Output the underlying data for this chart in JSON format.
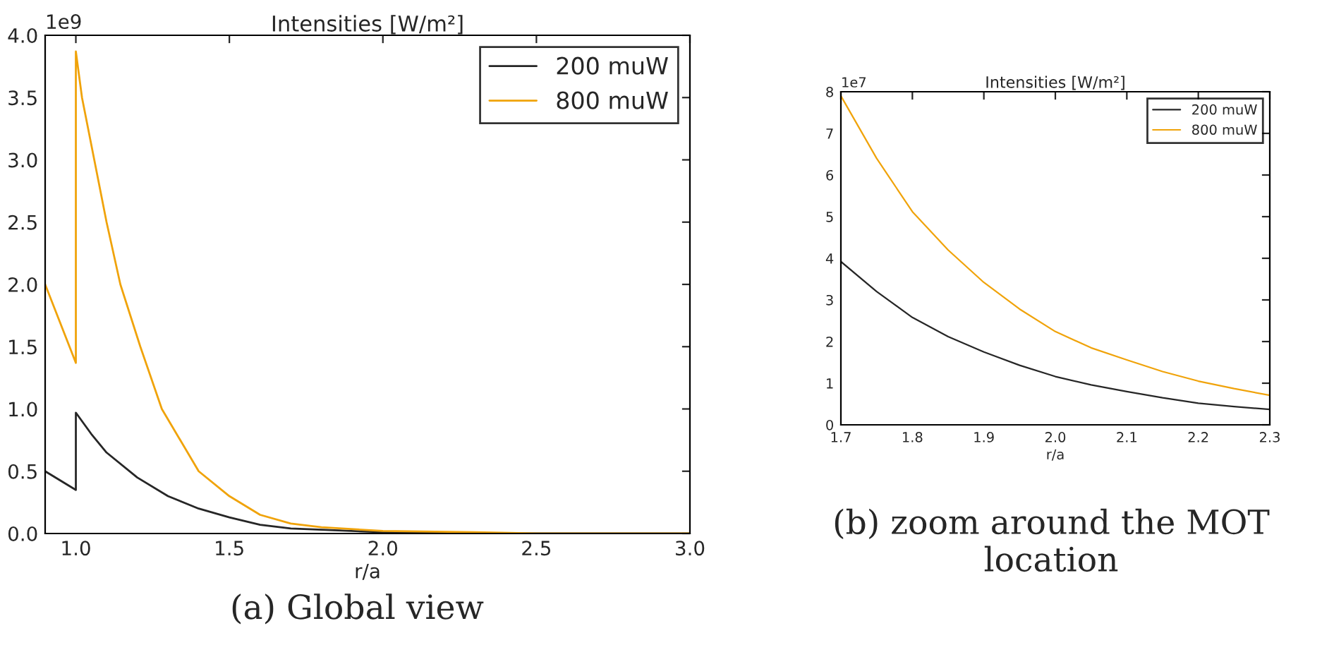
{
  "chart_data": [
    {
      "type": "line",
      "title": "Intensities [W/m²]",
      "xlabel": "r/a",
      "legend": "top right",
      "grid": false,
      "xlim": [
        0.9,
        3.0
      ],
      "xticks": [
        {
          "value": 1,
          "label": "1.0"
        },
        1.5,
        {
          "value": 2,
          "label": "2.0"
        },
        2.5,
        {
          "value": 3,
          "label": "3.0"
        }
      ],
      "ylim": [
        0,
        4.0
      ],
      "yticks": [
        {
          "value": 0,
          "label": "0.0"
        },
        0.5,
        {
          "value": 1,
          "label": "1.0"
        },
        1.5,
        {
          "value": 2,
          "label": "2.0"
        },
        2.5,
        {
          "value": 3,
          "label": "3.0"
        },
        3.5,
        {
          "value": 4,
          "label": "4.0"
        }
      ],
      "annotations": [
        "1e9",
        "(a) Global view"
      ],
      "series": [
        {
          "name": "200 muW",
          "color": "#262626",
          "x": [
            0.9,
            1.0,
            1.0,
            1.05,
            1.1,
            1.2,
            1.3,
            1.4,
            1.5,
            1.6,
            1.7,
            1.8,
            2.0,
            2.3,
            2.5,
            3.0
          ],
          "values": [
            0.5,
            0.35,
            0.97,
            0.8,
            0.65,
            0.45,
            0.3,
            0.2,
            0.13,
            0.07,
            0.04,
            0.03,
            0.01,
            0.0,
            0.0,
            0.0
          ]
        },
        {
          "name": "800 muW",
          "color": "#f0a30a",
          "x": [
            0.9,
            1.0,
            1.0,
            1.02,
            1.06,
            1.1,
            1.145,
            1.21,
            1.28,
            1.4,
            1.5,
            1.6,
            1.7,
            1.8,
            2.0,
            2.3,
            2.5,
            3.0
          ],
          "values": [
            2.0,
            1.37,
            3.87,
            3.5,
            3.0,
            2.5,
            2.0,
            1.5,
            1.0,
            0.5,
            0.3,
            0.15,
            0.08,
            0.05,
            0.02,
            0.01,
            0.0,
            0.0
          ]
        }
      ]
    },
    {
      "type": "line",
      "title": "Intensities [W/m²]",
      "xlabel": "r/a",
      "legend": "top right",
      "grid": false,
      "xlim": [
        1.7,
        2.3
      ],
      "xticks": [
        1.7,
        1.8,
        1.9,
        {
          "value": 2,
          "label": "2.0"
        },
        2.1,
        2.2,
        2.3
      ],
      "ylim": [
        0,
        8
      ],
      "yticks": [
        0,
        1,
        2,
        3,
        4,
        5,
        6,
        7,
        8
      ],
      "annotations": [
        "1e7",
        "(b) zoom around the MOT location"
      ],
      "series": [
        {
          "name": "200 muW",
          "color": "#262626",
          "x": [
            1.7,
            1.75,
            1.8,
            1.85,
            1.9,
            1.95,
            2.0,
            2.05,
            2.1,
            2.15,
            2.2,
            2.25,
            2.3
          ],
          "values": [
            3.92,
            3.2,
            2.58,
            2.12,
            1.75,
            1.43,
            1.16,
            0.96,
            0.8,
            0.65,
            0.52,
            0.44,
            0.37
          ]
        },
        {
          "name": "800 muW",
          "color": "#f0a30a",
          "x": [
            1.7,
            1.75,
            1.8,
            1.85,
            1.9,
            1.95,
            2.0,
            2.05,
            2.1,
            2.15,
            2.2,
            2.25,
            2.3
          ],
          "values": [
            7.9,
            6.4,
            5.12,
            4.2,
            3.42,
            2.78,
            2.24,
            1.85,
            1.56,
            1.28,
            1.05,
            0.87,
            0.71
          ]
        }
      ]
    }
  ]
}
